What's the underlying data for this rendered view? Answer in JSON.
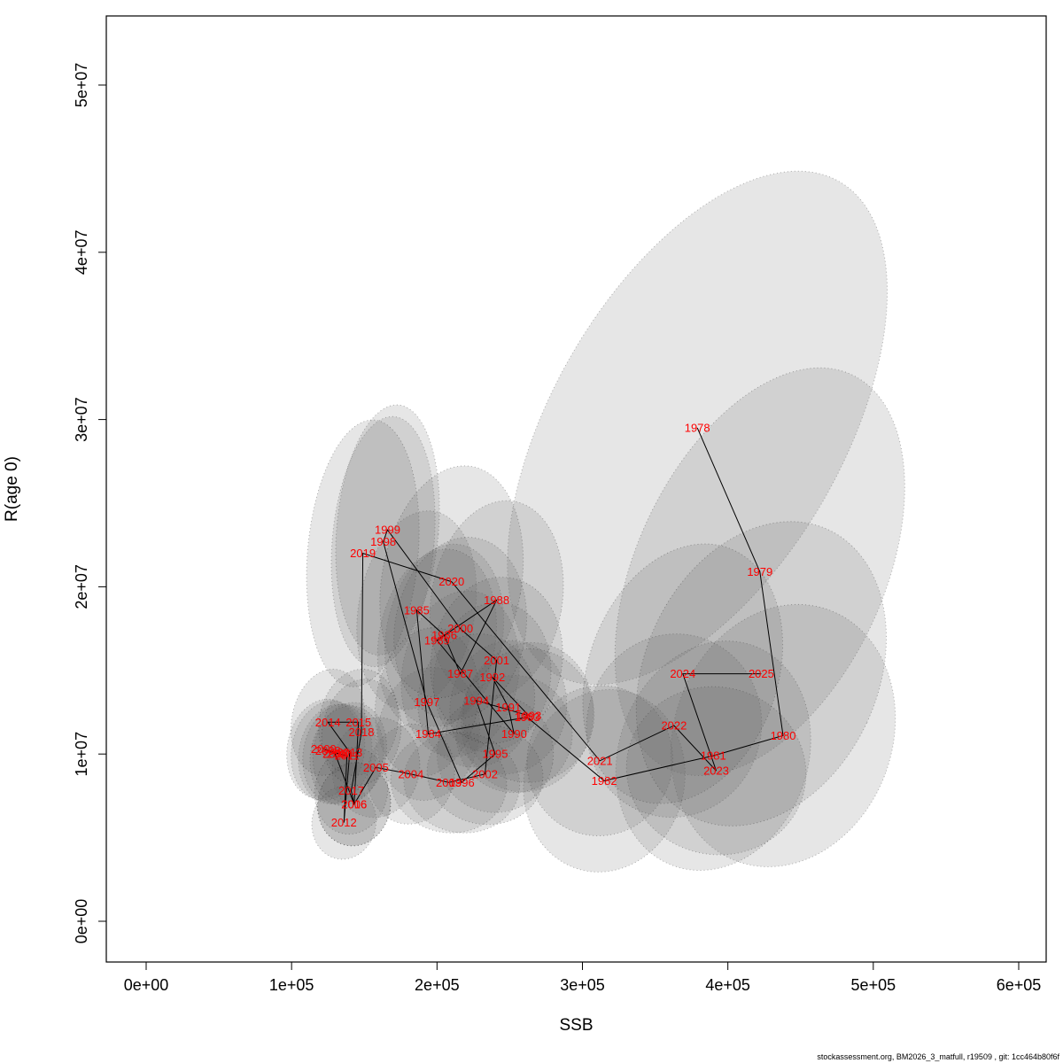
{
  "footer": "stockassessment.org, BM2026_3_matfull, r19509 , git: 1cc464b80f6f",
  "chart_data": {
    "type": "scatter",
    "title": "",
    "xlabel": "SSB",
    "ylabel": "R(age 0)",
    "xlim": [
      0,
      600000
    ],
    "ylim": [
      0,
      50000000
    ],
    "grid": false,
    "legend": "none",
    "label_color": "#ff0000",
    "line_color": "#000000",
    "ellipse_fill": "rgba(100,100,100,0.16)",
    "ellipse_stroke": "rgba(0,0,0,0.30)",
    "x_ticks": [
      {
        "label": "0e+00",
        "value": 0
      },
      {
        "label": "1e+05",
        "value": 100000
      },
      {
        "label": "2e+05",
        "value": 200000
      },
      {
        "label": "3e+05",
        "value": 300000
      },
      {
        "label": "4e+05",
        "value": 400000
      },
      {
        "label": "5e+05",
        "value": 500000
      },
      {
        "label": "6e+05",
        "value": 600000
      }
    ],
    "y_ticks": [
      {
        "label": "0e+00",
        "value": 0
      },
      {
        "label": "1e+07",
        "value": 10000000
      },
      {
        "label": "2e+07",
        "value": 20000000
      },
      {
        "label": "3e+07",
        "value": 30000000
      },
      {
        "label": "4e+07",
        "value": 40000000
      },
      {
        "label": "5e+07",
        "value": 50000000
      }
    ],
    "connect": "chronological",
    "series": [
      {
        "name": "recruitment-vs-ssb",
        "points": [
          {
            "year": 1978,
            "ssb": 379000,
            "r": 29500000,
            "ex": 100000,
            "ey": 17000000,
            "rot": 30
          },
          {
            "year": 1979,
            "ssb": 422000,
            "r": 20900000,
            "ex": 85000,
            "ey": 13000000,
            "rot": 25
          },
          {
            "year": 1980,
            "ssb": 438000,
            "r": 11100000,
            "ex": 75000,
            "ey": 8000000,
            "rot": 20
          },
          {
            "year": 1981,
            "ssb": 390000,
            "r": 9900000,
            "ex": 65000,
            "ey": 7000000,
            "rot": 20
          },
          {
            "year": 1982,
            "ssb": 315000,
            "r": 8400000,
            "ex": 55000,
            "ey": 5500000,
            "rot": 15
          },
          {
            "year": 1983,
            "ssb": 262000,
            "r": 12200000,
            "ex": 45000,
            "ey": 4500000,
            "rot": 15
          },
          {
            "year": 1984,
            "ssb": 194000,
            "r": 11200000,
            "ex": 35000,
            "ey": 4000000,
            "rot": 10
          },
          {
            "year": 1985,
            "ssb": 186000,
            "r": 18600000,
            "ex": 40000,
            "ey": 6000000,
            "rot": 10
          },
          {
            "year": 1986,
            "ssb": 205000,
            "r": 17100000,
            "ex": 40000,
            "ey": 5500000,
            "rot": 10
          },
          {
            "year": 1987,
            "ssb": 216000,
            "r": 14800000,
            "ex": 40000,
            "ey": 5000000,
            "rot": 10
          },
          {
            "year": 1988,
            "ssb": 241000,
            "r": 19200000,
            "ex": 45000,
            "ey": 6000000,
            "rot": 10
          },
          {
            "year": 1989,
            "ssb": 200000,
            "r": 16800000,
            "ex": 40000,
            "ey": 5500000,
            "rot": 10
          },
          {
            "year": 1990,
            "ssb": 253000,
            "r": 11200000,
            "ex": 40000,
            "ey": 3500000,
            "rot": 10
          },
          {
            "year": 1991,
            "ssb": 249000,
            "r": 12800000,
            "ex": 40000,
            "ey": 4000000,
            "rot": 10
          },
          {
            "year": 1992,
            "ssb": 238000,
            "r": 14600000,
            "ex": 40000,
            "ey": 4500000,
            "rot": 10
          },
          {
            "year": 1993,
            "ssb": 263000,
            "r": 12300000,
            "ex": 45000,
            "ey": 4000000,
            "rot": 10
          },
          {
            "year": 1994,
            "ssb": 227000,
            "r": 13200000,
            "ex": 40000,
            "ey": 4000000,
            "rot": 10
          },
          {
            "year": 1995,
            "ssb": 240000,
            "r": 10000000,
            "ex": 40000,
            "ey": 3500000,
            "rot": 10
          },
          {
            "year": 1996,
            "ssb": 217000,
            "r": 8300000,
            "ex": 40000,
            "ey": 3000000,
            "rot": 10
          },
          {
            "year": 1997,
            "ssb": 193000,
            "r": 13100000,
            "ex": 35000,
            "ey": 4500000,
            "rot": 10
          },
          {
            "year": 1998,
            "ssb": 163000,
            "r": 22700000,
            "ex": 35000,
            "ey": 7500000,
            "rot": 5
          },
          {
            "year": 1999,
            "ssb": 166000,
            "r": 23400000,
            "ex": 35000,
            "ey": 7500000,
            "rot": 5
          },
          {
            "year": 2000,
            "ssb": 216000,
            "r": 17500000,
            "ex": 45000,
            "ey": 5500000,
            "rot": 10
          },
          {
            "year": 2001,
            "ssb": 241000,
            "r": 15600000,
            "ex": 45000,
            "ey": 5000000,
            "rot": 10
          },
          {
            "year": 2002,
            "ssb": 233000,
            "r": 8800000,
            "ex": 40000,
            "ey": 3000000,
            "rot": 10
          },
          {
            "year": 2003,
            "ssb": 208000,
            "r": 8300000,
            "ex": 40000,
            "ey": 3000000,
            "rot": 10
          },
          {
            "year": 2004,
            "ssb": 182000,
            "r": 8800000,
            "ex": 30000,
            "ey": 3000000,
            "rot": 10
          },
          {
            "year": 2005,
            "ssb": 158000,
            "r": 9200000,
            "ex": 30000,
            "ey": 3000000,
            "rot": 10
          },
          {
            "year": 2006,
            "ssb": 143000,
            "r": 7000000,
            "ex": 25000,
            "ey": 2500000,
            "rot": 10
          },
          {
            "year": 2007,
            "ssb": 130000,
            "r": 10000000,
            "ex": 25000,
            "ey": 3000000,
            "rot": 10
          },
          {
            "year": 2008,
            "ssb": 125000,
            "r": 10200000,
            "ex": 25000,
            "ey": 3000000,
            "rot": 10
          },
          {
            "year": 2009,
            "ssb": 122000,
            "r": 10300000,
            "ex": 25000,
            "ey": 3000000,
            "rot": 10
          },
          {
            "year": 2010,
            "ssb": 133000,
            "r": 10000000,
            "ex": 25000,
            "ey": 3000000,
            "rot": 10
          },
          {
            "year": 2011,
            "ssb": 138000,
            "r": 9900000,
            "ex": 25000,
            "ey": 3000000,
            "rot": 10
          },
          {
            "year": 2012,
            "ssb": 136000,
            "r": 5900000,
            "ex": 22000,
            "ey": 2200000,
            "rot": 10
          },
          {
            "year": 2013,
            "ssb": 140000,
            "r": 10100000,
            "ex": 25000,
            "ey": 3000000,
            "rot": 10
          },
          {
            "year": 2014,
            "ssb": 125000,
            "r": 11900000,
            "ex": 25000,
            "ey": 3200000,
            "rot": 10
          },
          {
            "year": 2015,
            "ssb": 146000,
            "r": 11900000,
            "ex": 27000,
            "ey": 3200000,
            "rot": 10
          },
          {
            "year": 2016,
            "ssb": 143000,
            "r": 7000000,
            "ex": 25000,
            "ey": 2500000,
            "rot": 10
          },
          {
            "year": 2017,
            "ssb": 141000,
            "r": 7800000,
            "ex": 25000,
            "ey": 2600000,
            "rot": 10
          },
          {
            "year": 2018,
            "ssb": 148000,
            "r": 11300000,
            "ex": 27000,
            "ey": 3200000,
            "rot": 10
          },
          {
            "year": 2019,
            "ssb": 149000,
            "r": 22000000,
            "ex": 38000,
            "ey": 8000000,
            "rot": 5
          },
          {
            "year": 2020,
            "ssb": 210000,
            "r": 20300000,
            "ex": 48000,
            "ey": 7000000,
            "rot": 10
          },
          {
            "year": 2021,
            "ssb": 312000,
            "r": 9600000,
            "ex": 50000,
            "ey": 4500000,
            "rot": 15
          },
          {
            "year": 2022,
            "ssb": 363000,
            "r": 11700000,
            "ex": 60000,
            "ey": 5500000,
            "rot": 15
          },
          {
            "year": 2023,
            "ssb": 392000,
            "r": 9000000,
            "ex": 62000,
            "ey": 5000000,
            "rot": 15
          },
          {
            "year": 2024,
            "ssb": 369000,
            "r": 14800000,
            "ex": 65000,
            "ey": 8000000,
            "rot": 20
          },
          {
            "year": 2025,
            "ssb": 423000,
            "r": 14800000,
            "ex": 80000,
            "ey": 9500000,
            "rot": 25
          }
        ]
      }
    ]
  }
}
